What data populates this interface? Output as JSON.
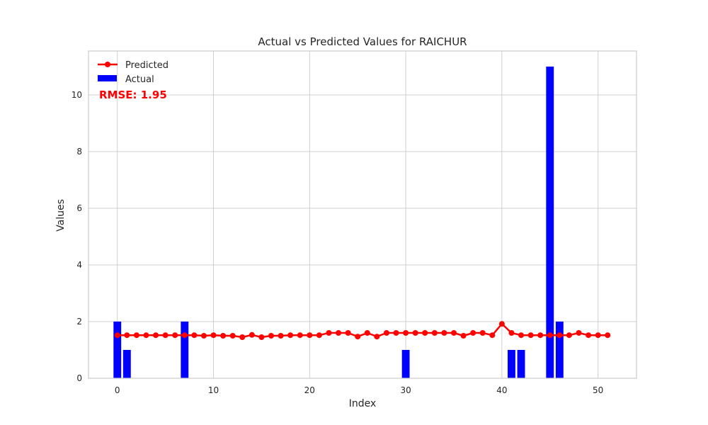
{
  "chart_data": {
    "type": "bar",
    "title": "Actual vs Predicted Values for RAICHUR",
    "xlabel": "Index",
    "ylabel": "Values",
    "xlim": [
      -3,
      54
    ],
    "ylim": [
      0,
      11.55
    ],
    "xticks": [
      0,
      10,
      20,
      30,
      40,
      50
    ],
    "yticks": [
      0,
      2,
      4,
      6,
      8,
      10
    ],
    "grid": true,
    "legend_position": "top-left",
    "annotation": "RMSE: 1.95",
    "colors": {
      "actual": "#0000ff",
      "predicted": "#ff0000",
      "grid": "#d0d0d0",
      "spine": "#cccccc",
      "annotation": "#ff0000"
    },
    "x": [
      0,
      1,
      2,
      3,
      4,
      5,
      6,
      7,
      8,
      9,
      10,
      11,
      12,
      13,
      14,
      15,
      16,
      17,
      18,
      19,
      20,
      21,
      22,
      23,
      24,
      25,
      26,
      27,
      28,
      29,
      30,
      31,
      32,
      33,
      34,
      35,
      36,
      37,
      38,
      39,
      40,
      41,
      42,
      43,
      44,
      45,
      46,
      47,
      48,
      49,
      50,
      51
    ],
    "series": [
      {
        "name": "Predicted",
        "kind": "line",
        "values": [
          1.52,
          1.52,
          1.52,
          1.52,
          1.52,
          1.52,
          1.52,
          1.52,
          1.52,
          1.5,
          1.52,
          1.5,
          1.5,
          1.45,
          1.53,
          1.45,
          1.5,
          1.5,
          1.52,
          1.52,
          1.52,
          1.52,
          1.6,
          1.6,
          1.6,
          1.47,
          1.6,
          1.47,
          1.6,
          1.6,
          1.6,
          1.6,
          1.6,
          1.6,
          1.6,
          1.6,
          1.5,
          1.6,
          1.6,
          1.52,
          1.92,
          1.6,
          1.52,
          1.52,
          1.52,
          1.52,
          1.52,
          1.52,
          1.6,
          1.52,
          1.52,
          1.52
        ]
      },
      {
        "name": "Actual",
        "kind": "bar",
        "values": [
          2,
          1,
          0,
          0,
          0,
          0,
          0,
          2,
          0,
          0,
          0,
          0,
          0,
          0,
          0,
          0,
          0,
          0,
          0,
          0,
          0,
          0,
          0,
          0,
          0,
          0,
          0,
          0,
          0,
          0,
          1,
          0,
          0,
          0,
          0,
          0,
          0,
          0,
          0,
          0,
          0,
          1,
          1,
          0,
          0,
          11,
          2,
          0,
          0,
          0,
          0,
          0
        ]
      }
    ]
  }
}
